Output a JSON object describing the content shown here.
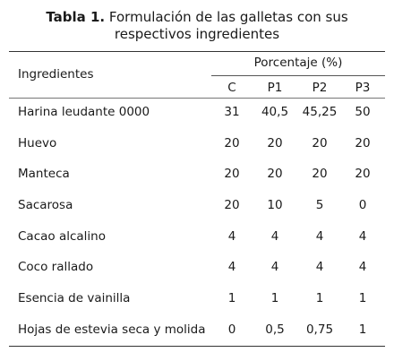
{
  "table": {
    "caption_label": "Tabla 1.",
    "caption_line1": "Formulación de las galletas con sus",
    "caption_line2": "respectivos ingredientes",
    "header_ingredients": "Ingredientes",
    "header_group": "Porcentaje (%)",
    "columns": [
      "C",
      "P1",
      "P2",
      "P3"
    ],
    "rows": [
      {
        "name": "Harina leudante 0000",
        "values": [
          "31",
          "40,5",
          "45,25",
          "50"
        ]
      },
      {
        "name": "Huevo",
        "values": [
          "20",
          "20",
          "20",
          "20"
        ]
      },
      {
        "name": "Manteca",
        "values": [
          "20",
          "20",
          "20",
          "20"
        ]
      },
      {
        "name": "Sacarosa",
        "values": [
          "20",
          "10",
          "5",
          "0"
        ]
      },
      {
        "name": "Cacao alcalino",
        "values": [
          "4",
          "4",
          "4",
          "4"
        ]
      },
      {
        "name": "Coco rallado",
        "values": [
          "4",
          "4",
          "4",
          "4"
        ]
      },
      {
        "name": "Esencia de vainilla",
        "values": [
          "1",
          "1",
          "1",
          "1"
        ]
      },
      {
        "name": "Hojas de estevia seca y molida",
        "values": [
          "0",
          "0,5",
          "0,75",
          "1"
        ]
      }
    ]
  }
}
